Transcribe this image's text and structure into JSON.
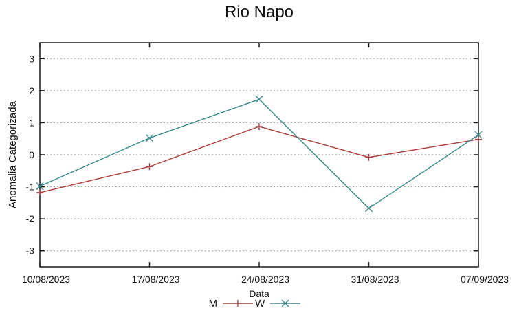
{
  "chart_data": {
    "type": "line",
    "title": "Rio Napo",
    "xlabel": "Data",
    "ylabel": "Anomalia Categorizada",
    "categories": [
      "10/08/2023",
      "17/08/2023",
      "24/08/2023",
      "31/08/2023",
      "07/09/2023"
    ],
    "yticks": [
      -3,
      -2,
      -1,
      0,
      1,
      2,
      3
    ],
    "ylim": [
      -3.5,
      3.5
    ],
    "grid": "horizontal-dotted",
    "legend_position": "bottom-center",
    "series": [
      {
        "name": "M",
        "color": "#ae3d3c",
        "marker": "plus",
        "values": [
          -1.18,
          -0.37,
          0.88,
          -0.08,
          0.48
        ]
      },
      {
        "name": "W",
        "color": "#38898b",
        "marker": "cross",
        "values": [
          -0.98,
          0.52,
          1.73,
          -1.67,
          0.62
        ]
      }
    ]
  },
  "colors": {
    "background": "#ffffff",
    "border": "#1a1a1a",
    "grid": "#999999",
    "text": "#111111"
  }
}
